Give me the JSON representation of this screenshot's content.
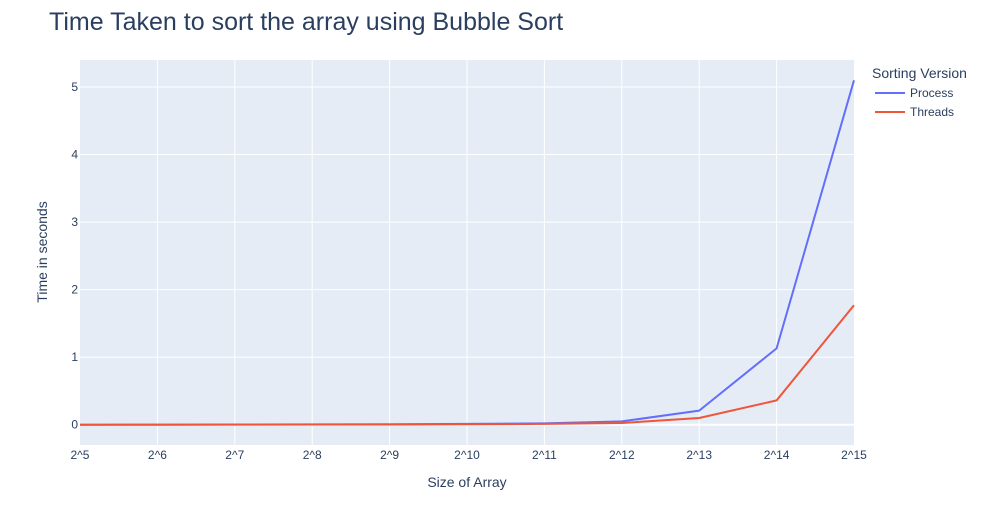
{
  "chart_data": {
    "type": "line",
    "title": "Time Taken to sort the array using Bubble Sort",
    "xlabel": "Size of Array",
    "ylabel": "Time in seconds",
    "categories": [
      "2^5",
      "2^6",
      "2^7",
      "2^8",
      "2^9",
      "2^10",
      "2^11",
      "2^12",
      "2^13",
      "2^14",
      "2^15"
    ],
    "ylim": [
      -0.3,
      5.4
    ],
    "yticks": [
      0,
      1,
      2,
      3,
      4,
      5
    ],
    "grid": true,
    "legend": {
      "title": "Sorting Version",
      "placement": "right"
    },
    "series": [
      {
        "name": "Process",
        "color": "#636efa",
        "values": [
          0.001,
          0.002,
          0.003,
          0.005,
          0.008,
          0.012,
          0.02,
          0.05,
          0.21,
          1.13,
          5.1
        ]
      },
      {
        "name": "Threads",
        "color": "#ef553b",
        "values": [
          0.001,
          0.001,
          0.002,
          0.003,
          0.004,
          0.006,
          0.012,
          0.025,
          0.1,
          0.36,
          1.77
        ]
      }
    ],
    "plot_background": "#e5ecf6",
    "grid_color": "#ffffff",
    "text_color": "#2a3f5f"
  }
}
